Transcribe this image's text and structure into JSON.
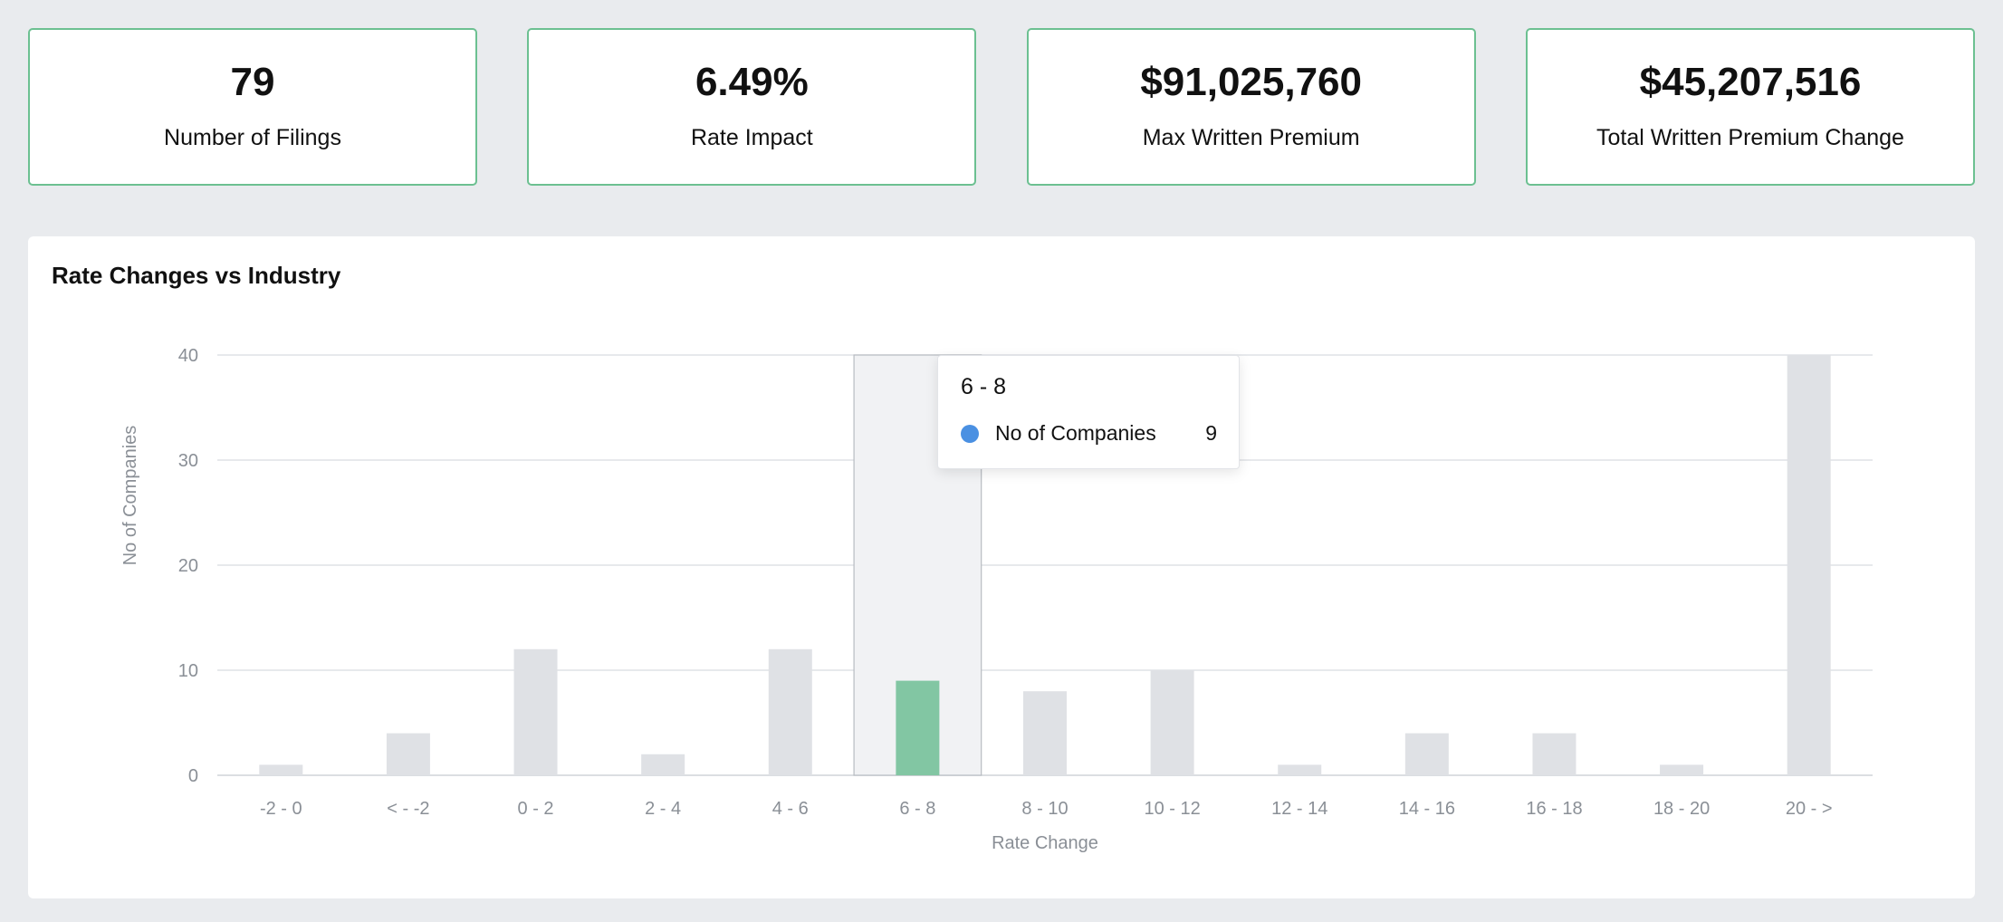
{
  "kpis": [
    {
      "value": "79",
      "label": "Number of Filings"
    },
    {
      "value": "6.49%",
      "label": "Rate Impact"
    },
    {
      "value": "$91,025,760",
      "label": "Max Written Premium"
    },
    {
      "value": "$45,207,516",
      "label": "Total Written Premium Change"
    }
  ],
  "panel": {
    "title": "Rate Changes vs Industry"
  },
  "tooltip": {
    "title": "6 - 8",
    "series_name": "No of Companies",
    "value": "9",
    "dot_color": "#4a90e2"
  },
  "colors": {
    "bar": "#dfe1e5",
    "highlight_bar": "#82c6a3",
    "kpi_border": "#6cc091"
  },
  "chart_data": {
    "type": "bar",
    "categories": [
      "-2 - 0",
      "< - -2",
      "0 - 2",
      "2 - 4",
      "4 - 6",
      "6 - 8",
      "8 - 10",
      "10 - 12",
      "12 - 14",
      "14 - 16",
      "16 - 18",
      "18 - 20",
      "20 - >"
    ],
    "series": [
      {
        "name": "No of Companies",
        "values": [
          1,
          4,
          12,
          2,
          12,
          9,
          8,
          10,
          1,
          4,
          4,
          1,
          40
        ]
      }
    ],
    "highlighted_category": "6 - 8",
    "xlabel": "Rate Change",
    "ylabel": "No of Companies",
    "ylim": [
      0,
      40
    ],
    "yticks": [
      0,
      10,
      20,
      30,
      40
    ],
    "grid": true
  }
}
